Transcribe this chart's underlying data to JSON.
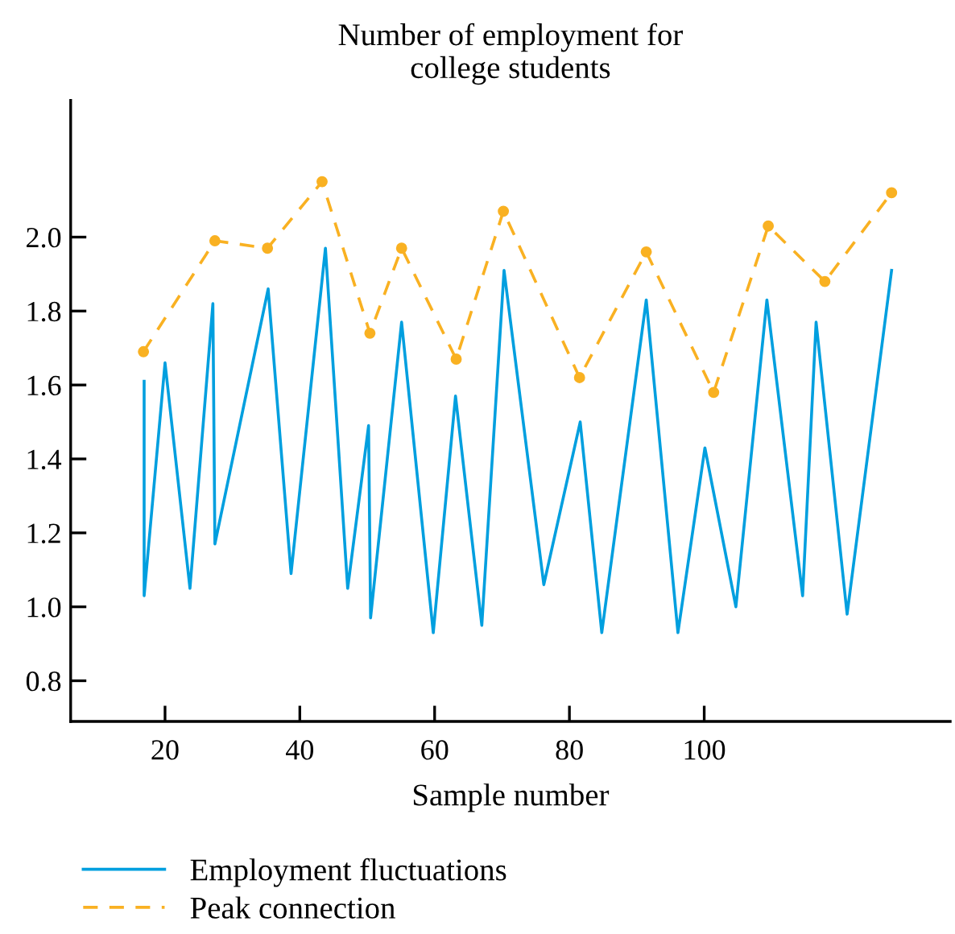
{
  "chart_data": {
    "type": "line",
    "title": "Number of employment for\ncollege students",
    "xlabel": "Sample number",
    "xlim": [
      6,
      136.5
    ],
    "ylim": [
      0.69,
      2.37
    ],
    "xticks": [
      20,
      40,
      60,
      80,
      100
    ],
    "yticks": [
      0.8,
      {
        "value": 1,
        "label": "1.0"
      },
      1.2,
      1.4,
      1.6,
      1.8,
      {
        "value": 2,
        "label": "2.0"
      }
    ],
    "grid": false,
    "legend": "bottom",
    "series": [
      {
        "name": "Employment fluctuations",
        "color": "#009fdf",
        "line_style": "solid",
        "marker": "none",
        "x": [
          16.9,
          16.9,
          20.0,
          23.7,
          27.1,
          27.4,
          35.3,
          38.7,
          43.8,
          47.1,
          50.2,
          50.5,
          55.1,
          59.8,
          63.1,
          67.0,
          70.3,
          76.2,
          81.6,
          84.8,
          91.4,
          96.1,
          100.1,
          104.7,
          109.3,
          114.6,
          116.6,
          121.2,
          127.8
        ],
        "values": [
          1.61,
          1.03,
          1.66,
          1.05,
          1.82,
          1.17,
          1.86,
          1.09,
          1.97,
          1.05,
          1.49,
          0.97,
          1.77,
          0.93,
          1.57,
          0.95,
          1.91,
          1.06,
          1.5,
          0.93,
          1.83,
          0.93,
          1.43,
          1.0,
          1.83,
          1.03,
          1.77,
          0.98,
          1.91
        ]
      },
      {
        "name": "Peak connection",
        "color": "#f9b122",
        "line_style": "dashed",
        "marker": "circle",
        "x": [
          16.8,
          27.4,
          35.2,
          43.3,
          50.4,
          55.1,
          63.2,
          70.2,
          81.5,
          91.4,
          101.4,
          109.5,
          117.9,
          127.8
        ],
        "values": [
          1.69,
          1.99,
          1.97,
          2.15,
          1.74,
          1.97,
          1.67,
          2.07,
          1.62,
          1.96,
          1.58,
          2.03,
          1.88,
          2.12
        ]
      }
    ]
  }
}
